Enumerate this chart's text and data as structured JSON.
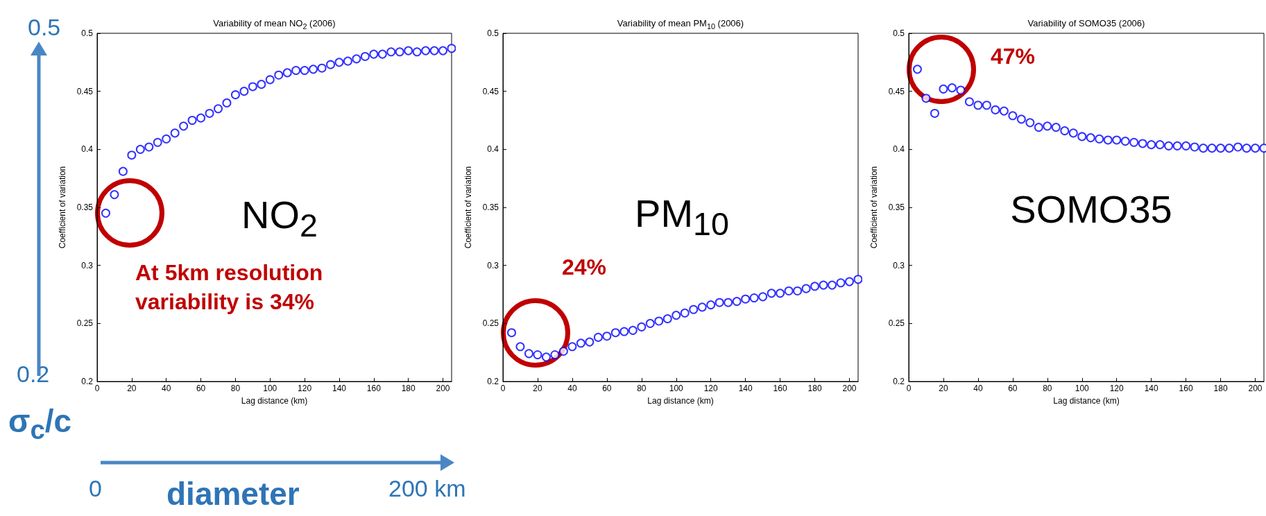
{
  "chart_data": [
    {
      "type": "scatter",
      "title": "Variability of mean NO$_{2}$ (2006)",
      "xlabel": "Lag distance (km)",
      "ylabel": "Coefficient of variation",
      "color": "#0000ff",
      "marker": "circle",
      "xlim": [
        0,
        205
      ],
      "xticks": [
        0,
        20,
        40,
        60,
        80,
        100,
        120,
        140,
        160,
        180,
        200
      ],
      "ylim": [
        0.2,
        0.5
      ],
      "yticks": [
        0.2,
        0.25,
        0.3,
        0.35,
        0.4,
        0.45,
        0.5
      ],
      "x": [
        5,
        10,
        15,
        20,
        25,
        30,
        35,
        40,
        45,
        50,
        55,
        60,
        65,
        70,
        75,
        80,
        85,
        90,
        95,
        100,
        105,
        110,
        115,
        120,
        125,
        130,
        135,
        140,
        145,
        150,
        155,
        160,
        165,
        170,
        175,
        180,
        185,
        190,
        195,
        200,
        205
      ],
      "values": [
        0.345,
        0.361,
        0.381,
        0.395,
        0.4,
        0.402,
        0.406,
        0.409,
        0.414,
        0.42,
        0.425,
        0.427,
        0.431,
        0.435,
        0.44,
        0.447,
        0.45,
        0.454,
        0.456,
        0.46,
        0.464,
        0.466,
        0.468,
        0.468,
        0.469,
        0.47,
        0.473,
        0.475,
        0.476,
        0.478,
        0.48,
        0.482,
        0.482,
        0.484,
        0.484,
        0.485,
        0.484,
        0.485,
        0.485,
        0.485,
        0.487
      ],
      "annotations": [
        "NO$_{2}$",
        "At 5km resolution variability is 34%",
        "0.5",
        "0.2",
        "σ$_{c}$/c",
        "0",
        "diameter",
        "200 km"
      ]
    },
    {
      "type": "scatter",
      "title": "Variability of mean PM$_{10}$ (2006)",
      "xlabel": "Lag distance (km)",
      "ylabel": "Coefficient of variation",
      "color": "#0000ff",
      "marker": "circle",
      "xlim": [
        0,
        205
      ],
      "xticks": [
        0,
        20,
        40,
        60,
        80,
        100,
        120,
        140,
        160,
        180,
        200
      ],
      "ylim": [
        0.2,
        0.5
      ],
      "yticks": [
        0.2,
        0.25,
        0.3,
        0.35,
        0.4,
        0.45,
        0.5
      ],
      "x": [
        5,
        10,
        15,
        20,
        25,
        30,
        35,
        40,
        45,
        50,
        55,
        60,
        65,
        70,
        75,
        80,
        85,
        90,
        95,
        100,
        105,
        110,
        115,
        120,
        125,
        130,
        135,
        140,
        145,
        150,
        155,
        160,
        165,
        170,
        175,
        180,
        185,
        190,
        195,
        200,
        205
      ],
      "values": [
        0.242,
        0.23,
        0.224,
        0.223,
        0.221,
        0.223,
        0.226,
        0.23,
        0.233,
        0.234,
        0.238,
        0.239,
        0.242,
        0.243,
        0.244,
        0.247,
        0.25,
        0.252,
        0.254,
        0.257,
        0.259,
        0.262,
        0.264,
        0.266,
        0.268,
        0.268,
        0.269,
        0.271,
        0.272,
        0.273,
        0.276,
        0.276,
        0.278,
        0.278,
        0.28,
        0.282,
        0.283,
        0.283,
        0.285,
        0.286,
        0.288
      ],
      "annotations": [
        "PM$_{10}$",
        "24%"
      ]
    },
    {
      "type": "scatter",
      "title": "Variability of SOMO35 (2006)",
      "xlabel": "Lag distance (km)",
      "ylabel": "Coefficient of variation",
      "color": "#0000ff",
      "marker": "circle",
      "xlim": [
        0,
        205
      ],
      "xticks": [
        0,
        20,
        40,
        60,
        80,
        100,
        120,
        140,
        160,
        180,
        200
      ],
      "ylim": [
        0.2,
        0.5
      ],
      "yticks": [
        0.2,
        0.25,
        0.3,
        0.35,
        0.4,
        0.45,
        0.5
      ],
      "x": [
        5,
        10,
        15,
        20,
        25,
        30,
        35,
        40,
        45,
        50,
        55,
        60,
        65,
        70,
        75,
        80,
        85,
        90,
        95,
        100,
        105,
        110,
        115,
        120,
        125,
        130,
        135,
        140,
        145,
        150,
        155,
        160,
        165,
        170,
        175,
        180,
        185,
        190,
        195,
        200,
        205
      ],
      "values": [
        0.469,
        0.444,
        0.431,
        0.452,
        0.453,
        0.451,
        0.441,
        0.438,
        0.438,
        0.434,
        0.433,
        0.429,
        0.426,
        0.423,
        0.419,
        0.42,
        0.419,
        0.416,
        0.414,
        0.411,
        0.41,
        0.409,
        0.408,
        0.408,
        0.407,
        0.406,
        0.405,
        0.404,
        0.404,
        0.403,
        0.403,
        0.403,
        0.402,
        0.401,
        0.401,
        0.401,
        0.401,
        0.402,
        0.401,
        0.401,
        0.401
      ],
      "annotations": [
        "SOMO35",
        "47%"
      ]
    }
  ]
}
